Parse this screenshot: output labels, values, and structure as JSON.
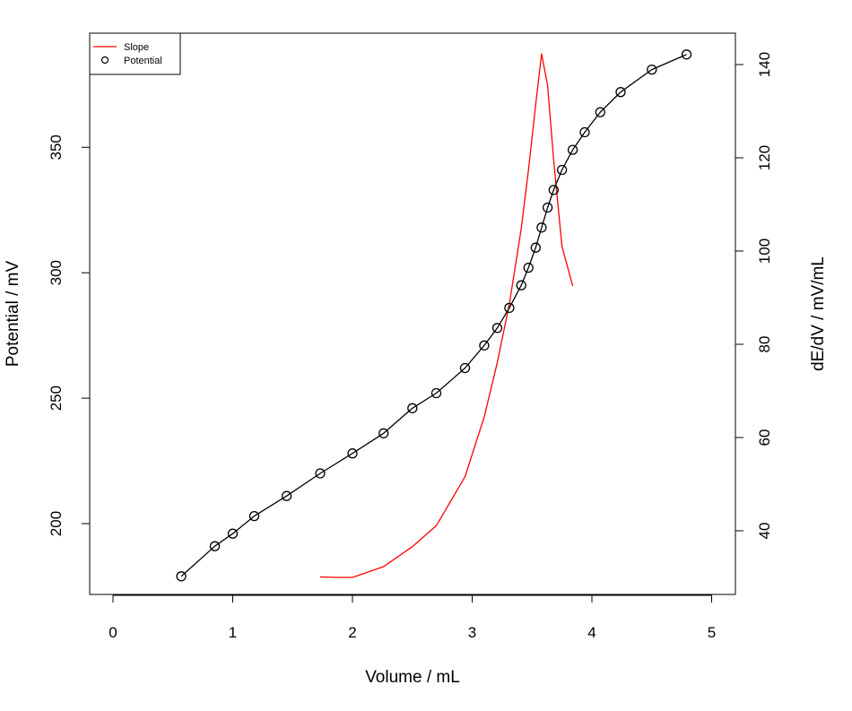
{
  "chart_data": {
    "type": "line",
    "title": "",
    "xlabel": "Volume / mL",
    "ylabel_left": "Potential / mV",
    "ylabel_right": "dE/dV / mV/mL",
    "xlim": [
      0,
      5
    ],
    "ylim_left": [
      175,
      390
    ],
    "ylim_right": [
      26,
      145
    ],
    "x_ticks": [
      0,
      1,
      2,
      3,
      4,
      5
    ],
    "y_left_ticks": [
      200,
      250,
      300,
      350
    ],
    "y_right_ticks": [
      40,
      60,
      80,
      100,
      120,
      140
    ],
    "grid": false,
    "legend": {
      "position": "top-left",
      "entries": [
        {
          "label": "Slope",
          "style": "line",
          "color": "#ff0000"
        },
        {
          "label": "Potential",
          "style": "circle",
          "color": "#000000"
        }
      ]
    },
    "series": [
      {
        "name": "Potential",
        "axis": "left",
        "color": "#000000",
        "style": "line-with-circles",
        "x": [
          0.57,
          0.85,
          1.0,
          1.18,
          1.45,
          1.73,
          2.0,
          2.26,
          2.5,
          2.7,
          2.94,
          3.1,
          3.21,
          3.31,
          3.41,
          3.47,
          3.53,
          3.58,
          3.63,
          3.68,
          3.75,
          3.84,
          3.94,
          4.07,
          4.24,
          4.5,
          4.79
        ],
        "values": [
          179,
          191,
          196,
          203,
          211,
          220,
          228,
          236,
          246,
          252,
          262,
          271,
          278,
          286,
          295,
          302,
          310,
          318,
          326,
          333,
          341,
          349,
          356,
          364,
          372,
          381,
          387
        ]
      },
      {
        "name": "Slope",
        "axis": "right",
        "color": "#ff0000",
        "style": "line",
        "x": [
          1.73,
          1.87,
          2.0,
          2.26,
          2.5,
          2.7,
          2.94,
          3.1,
          3.21,
          3.31,
          3.41,
          3.47,
          3.53,
          3.58,
          3.63,
          3.68,
          3.75,
          3.84
        ],
        "values": [
          30.1,
          30.0,
          30.0,
          32.3,
          36.6,
          41.1,
          51.6,
          64.4,
          76.1,
          88.6,
          104.8,
          117.3,
          131.4,
          142.3,
          135.5,
          119.6,
          101.0,
          92.5
        ]
      }
    ]
  }
}
